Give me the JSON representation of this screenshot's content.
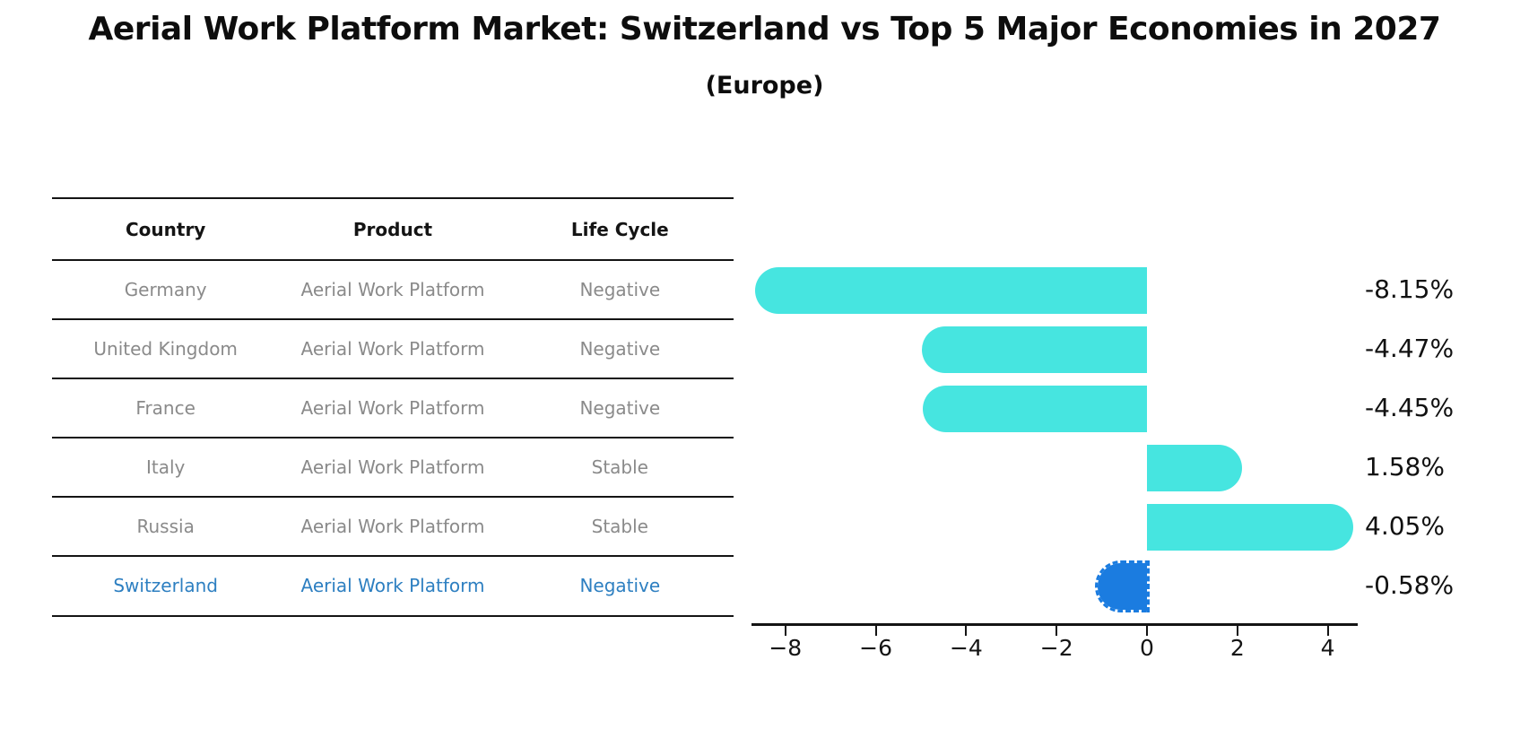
{
  "title": "Aerial Work Platform Market: Switzerland vs Top 5 Major Economies in 2027",
  "subtitle": "(Europe)",
  "table": {
    "headers": [
      "Country",
      "Product",
      "Life Cycle"
    ],
    "rows": [
      {
        "country": "Germany",
        "product": "Aerial Work Platform",
        "life_cycle": "Negative",
        "highlight": false
      },
      {
        "country": "United Kingdom",
        "product": "Aerial Work Platform",
        "life_cycle": "Negative",
        "highlight": false
      },
      {
        "country": "France",
        "product": "Aerial Work Platform",
        "life_cycle": "Negative",
        "highlight": false
      },
      {
        "country": "Italy",
        "product": "Aerial Work Platform",
        "life_cycle": "Stable",
        "highlight": false
      },
      {
        "country": "Russia",
        "product": "Aerial Work Platform",
        "life_cycle": "Stable",
        "highlight": false
      },
      {
        "country": "Switzerland",
        "product": "Aerial Work Platform",
        "life_cycle": "Negative",
        "highlight": true
      }
    ]
  },
  "chart_data": {
    "type": "bar",
    "orientation": "horizontal",
    "categories": [
      "Germany",
      "United Kingdom",
      "France",
      "Italy",
      "Russia",
      "Switzerland"
    ],
    "values": [
      -8.15,
      -4.47,
      -4.45,
      1.58,
      4.05,
      -0.58
    ],
    "value_labels": [
      "-8.15%",
      "-4.47%",
      "-4.45%",
      "1.58%",
      "4.05%",
      "-0.58%"
    ],
    "x_ticks": [
      -8,
      -6,
      -4,
      -2,
      0,
      2,
      4
    ],
    "x_tick_labels": [
      "−8",
      "−6",
      "−4",
      "−2",
      "0",
      "2",
      "4"
    ],
    "xlim": [
      -8.8,
      4.7
    ],
    "grid": false,
    "legend": "none",
    "bar_color": "#46e5e0",
    "highlight_bar_color": "#1b7ce0",
    "highlight_index": 5,
    "highlight_bar_style": "dashed-outline",
    "highlight_text_color": "#2d7fc1",
    "text_color": "#8a8a8a"
  }
}
